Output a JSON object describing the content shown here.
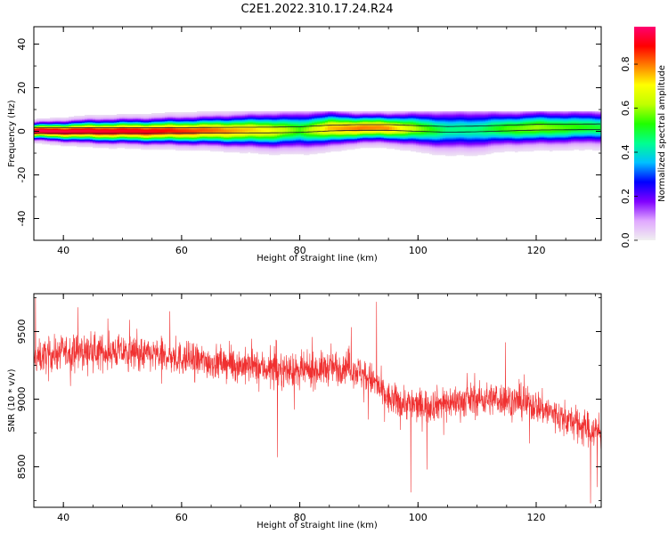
{
  "title": "C2E1.2022.310.17.24.R24",
  "colors": {
    "snr_line": "#f03030",
    "axis": "#000000",
    "background": "#ffffff"
  },
  "chart_data": [
    {
      "type": "heatmap",
      "xlabel": "Height of straight line (km)",
      "ylabel": "Frequency (Hz)",
      "xlim": [
        35,
        131
      ],
      "ylim": [
        -50,
        48
      ],
      "x_ticks": [
        {
          "value": 40,
          "label": "40"
        },
        {
          "value": 60,
          "label": "60"
        },
        {
          "value": 80,
          "label": "80"
        },
        {
          "value": 100,
          "label": "100"
        },
        {
          "value": 120,
          "label": "120"
        }
      ],
      "y_ticks": [
        {
          "value": -40,
          "label": "-40"
        },
        {
          "value": -20,
          "label": "-20"
        },
        {
          "value": 0,
          "label": "0"
        },
        {
          "value": 20,
          "label": "20"
        },
        {
          "value": 40,
          "label": "40"
        }
      ],
      "colorbar": {
        "label": "Normalized spectral amplitude",
        "range": [
          0,
          0.97
        ],
        "ticks": [
          {
            "value": 0.0,
            "label": "0.0"
          },
          {
            "value": 0.2,
            "label": "0.2"
          },
          {
            "value": 0.4,
            "label": "0.4"
          },
          {
            "value": 0.6,
            "label": "0.6"
          },
          {
            "value": 0.8,
            "label": "0.8"
          }
        ],
        "colormap": [
          "#f0f0f0",
          "#e0a8ff",
          "#8000ff",
          "#0000ff",
          "#00c0ff",
          "#00ff90",
          "#20ff00",
          "#c0ff00",
          "#ffff00",
          "#ff8000",
          "#ff0000",
          "#ff0070"
        ]
      },
      "ridge": {
        "heights": [
          35,
          45,
          55,
          65,
          75,
          80,
          85,
          90,
          95,
          100,
          105,
          110,
          115,
          120,
          125,
          131
        ],
        "center_freq_hz": [
          0.0,
          0.0,
          0.0,
          0.2,
          0.3,
          0.5,
          1.2,
          1.5,
          1.5,
          1.0,
          0.6,
          0.8,
          1.2,
          1.6,
          1.7,
          1.8
        ],
        "peak_amplitude": [
          0.95,
          0.92,
          0.9,
          0.82,
          0.7,
          0.55,
          0.75,
          0.8,
          0.78,
          0.6,
          0.45,
          0.45,
          0.55,
          0.6,
          0.55,
          0.5
        ],
        "halfwidth_hz": [
          1.5,
          2.0,
          2.2,
          2.5,
          3.0,
          3.2,
          3.0,
          2.5,
          2.5,
          3.0,
          3.5,
          3.5,
          3.0,
          3.0,
          3.0,
          3.0
        ]
      }
    },
    {
      "type": "line",
      "xlabel": "Height of straight line (km)",
      "ylabel": "SNR (10 * v/v)",
      "xlim": [
        35,
        131
      ],
      "ylim": [
        8200,
        9780
      ],
      "x_ticks": [
        {
          "value": 40,
          "label": "40"
        },
        {
          "value": 60,
          "label": "60"
        },
        {
          "value": 80,
          "label": "80"
        },
        {
          "value": 100,
          "label": "100"
        },
        {
          "value": 120,
          "label": "120"
        }
      ],
      "y_ticks": [
        {
          "value": 8500,
          "label": "8500"
        },
        {
          "value": 9000,
          "label": "9000"
        },
        {
          "value": 9500,
          "label": "9500"
        }
      ],
      "trend": {
        "x": [
          35,
          40,
          50,
          60,
          70,
          80,
          88,
          92,
          95,
          100,
          110,
          115,
          120,
          125,
          131
        ],
        "y": [
          9300,
          9350,
          9350,
          9300,
          9250,
          9200,
          9250,
          9150,
          9000,
          8950,
          9000,
          9000,
          8950,
          8850,
          8750
        ]
      },
      "noise_amplitude": 110,
      "spikes": [
        {
          "x": 35.3,
          "y": 9750
        },
        {
          "x": 42.5,
          "y": 9680
        },
        {
          "x": 58.0,
          "y": 9650
        },
        {
          "x": 76.2,
          "y": 8570
        },
        {
          "x": 93.0,
          "y": 9720
        },
        {
          "x": 98.8,
          "y": 8310
        },
        {
          "x": 101.5,
          "y": 8480
        },
        {
          "x": 114.8,
          "y": 9420
        },
        {
          "x": 129.2,
          "y": 8230
        },
        {
          "x": 130.3,
          "y": 8350
        }
      ]
    }
  ]
}
